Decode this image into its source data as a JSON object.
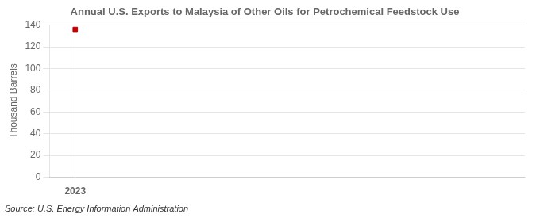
{
  "chart_data": {
    "type": "scatter",
    "title": "Annual U.S. Exports to Malaysia of Other Oils for Petrochemical Feedstock Use",
    "ylabel": "Thousand Barrels",
    "annotations": [
      "Source: U.S. Energy Information Administration"
    ],
    "x": [
      2023
    ],
    "values": [
      136
    ],
    "color": "#c00000",
    "marker": "square",
    "xlim": [
      2022.6,
      2030
    ],
    "ylim": [
      0,
      140
    ],
    "xticks": [
      2023
    ],
    "yticks": [
      0,
      20,
      40,
      60,
      80,
      100,
      120,
      140
    ],
    "grid": true
  }
}
